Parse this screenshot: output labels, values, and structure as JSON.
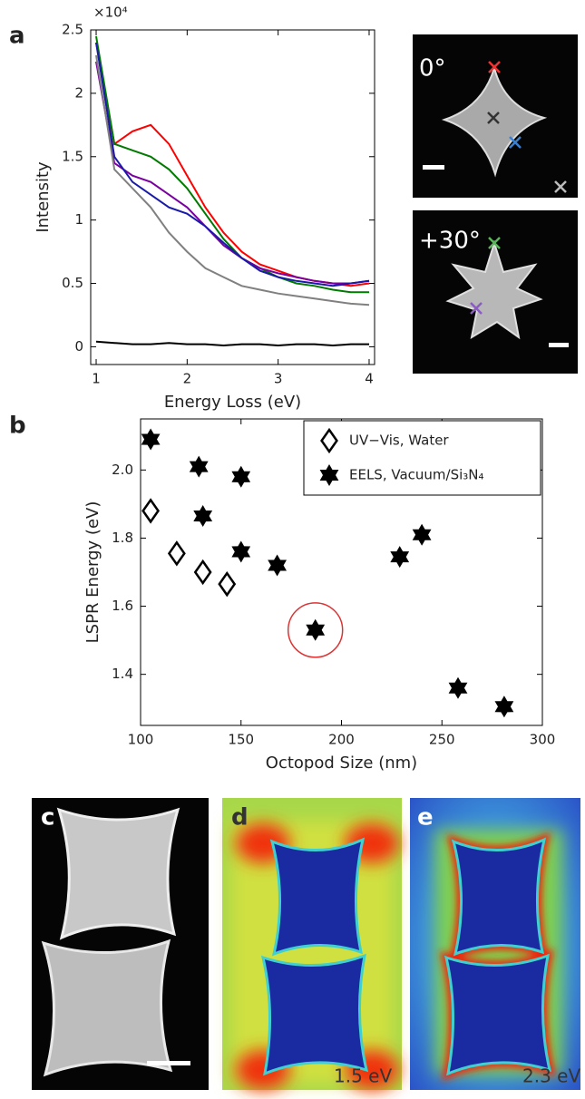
{
  "panels": [
    "a",
    "b",
    "c",
    "d",
    "e"
  ],
  "image_labels": [
    "0°",
    "+30°",
    "1.5 eV",
    "2.3 eV"
  ],
  "chart_data": [
    {
      "type": "line",
      "xlabel": "Energy Loss (eV)",
      "ylabel": "Intensity",
      "y_exponent": "×10⁴",
      "x": [
        1.0,
        1.2,
        1.4,
        1.6,
        1.8,
        2.0,
        2.2,
        2.4,
        2.6,
        2.8,
        3.0,
        3.2,
        3.4,
        3.6,
        3.8,
        4.0
      ],
      "series": [
        {
          "color": "#ff0000",
          "values": [
            2.4,
            1.6,
            1.7,
            1.75,
            1.6,
            1.35,
            1.1,
            0.9,
            0.75,
            0.65,
            0.6,
            0.55,
            0.52,
            0.5,
            0.48,
            0.5
          ]
        },
        {
          "color": "#007a00",
          "values": [
            2.45,
            1.6,
            1.55,
            1.5,
            1.4,
            1.25,
            1.05,
            0.85,
            0.7,
            0.62,
            0.55,
            0.5,
            0.48,
            0.45,
            0.43,
            0.43
          ]
        },
        {
          "color": "#7a00a0",
          "values": [
            2.25,
            1.45,
            1.35,
            1.3,
            1.2,
            1.1,
            0.95,
            0.8,
            0.7,
            0.62,
            0.58,
            0.55,
            0.52,
            0.5,
            0.5,
            0.52
          ]
        },
        {
          "color": "#1a1aa8",
          "values": [
            2.4,
            1.5,
            1.3,
            1.2,
            1.1,
            1.05,
            0.95,
            0.82,
            0.7,
            0.6,
            0.55,
            0.52,
            0.5,
            0.48,
            0.5,
            0.52
          ]
        },
        {
          "color": "#808080",
          "values": [
            2.3,
            1.4,
            1.25,
            1.1,
            0.9,
            0.75,
            0.62,
            0.55,
            0.48,
            0.45,
            0.42,
            0.4,
            0.38,
            0.36,
            0.34,
            0.33
          ]
        },
        {
          "color": "#000000",
          "values": [
            0.04,
            0.03,
            0.02,
            0.02,
            0.03,
            0.02,
            0.02,
            0.01,
            0.02,
            0.02,
            0.01,
            0.02,
            0.02,
            0.01,
            0.02,
            0.02
          ]
        }
      ],
      "xlim": [
        0.94,
        4.06
      ],
      "xticks": [
        1,
        2,
        3,
        4
      ],
      "ylim": [
        -0.14,
        2.5
      ],
      "yticks": [
        0,
        0.5,
        1,
        1.5,
        2,
        2.5
      ]
    },
    {
      "type": "scatter",
      "xlabel": "Octopod Size (nm)",
      "ylabel": "LSPR Energy (eV)",
      "series": [
        {
          "name": "UV−Vis, Water",
          "marker": "diamond",
          "color": "#000000",
          "x": [
            105,
            118,
            131,
            143
          ],
          "y": [
            1.88,
            1.755,
            1.7,
            1.665
          ]
        },
        {
          "name": "EELS, Vacuum/Si₃N₄",
          "marker": "hexagram",
          "color": "#000000",
          "x": [
            105,
            129,
            150,
            131,
            150,
            168,
            187,
            229,
            240,
            258,
            281
          ],
          "y": [
            2.09,
            2.01,
            1.98,
            1.865,
            1.76,
            1.72,
            1.53,
            1.745,
            1.81,
            1.36,
            1.305
          ]
        }
      ],
      "legend": "upper right",
      "xlim": [
        100,
        300
      ],
      "xticks": [
        100,
        150,
        200,
        250,
        300
      ],
      "ylim": [
        1.25,
        2.15
      ],
      "yticks": [
        1.4,
        1.6,
        1.8,
        {
          "value": 2,
          "label": "2.0"
        }
      ]
    }
  ]
}
